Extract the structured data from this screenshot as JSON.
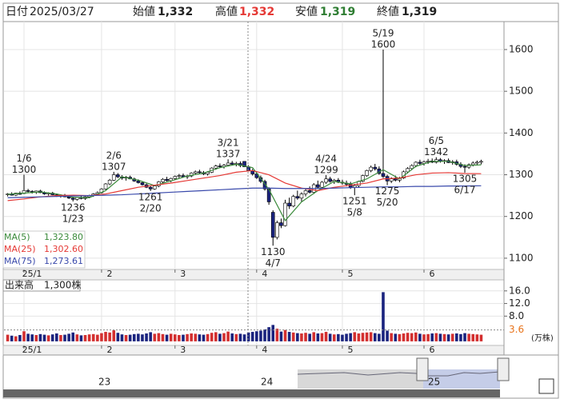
{
  "header": {
    "date_label": "日付",
    "date": "2025/03/27",
    "open_label": "始値",
    "open": "1,332",
    "high_label": "高値",
    "high": "1,332",
    "low_label": "安値",
    "low": "1,319",
    "close_label": "終値",
    "close": "1,319"
  },
  "chart_data": [
    {
      "type": "candlestick",
      "xlim": [
        -0.9,
        121.6
      ],
      "ylim": [
        1073,
        1667
      ],
      "grid": true,
      "yticks": [
        1100,
        1200,
        1300,
        1400,
        1500,
        1600
      ],
      "xticks": [
        {
          "value": 4,
          "label": "25/1"
        },
        {
          "value": 23,
          "label": "2"
        },
        {
          "value": 41,
          "label": "3"
        },
        {
          "value": 61,
          "label": "4"
        },
        {
          "value": 82,
          "label": "5"
        },
        {
          "value": 102,
          "label": "6"
        }
      ],
      "up_color": "#ffffff",
      "down_color": "#1a237e",
      "ohlc": [
        [
          1252,
          1256,
          1248,
          1254
        ],
        [
          1254,
          1258,
          1250,
          1251
        ],
        [
          1251,
          1257,
          1249,
          1256
        ],
        [
          1256,
          1260,
          1252,
          1253
        ],
        [
          1255,
          1300,
          1254,
          1262
        ],
        [
          1262,
          1266,
          1258,
          1260
        ],
        [
          1260,
          1263,
          1255,
          1258
        ],
        [
          1258,
          1262,
          1254,
          1261
        ],
        [
          1261,
          1264,
          1256,
          1257
        ],
        [
          1257,
          1260,
          1252,
          1254
        ],
        [
          1254,
          1258,
          1250,
          1256
        ],
        [
          1256,
          1259,
          1251,
          1252
        ],
        [
          1252,
          1255,
          1247,
          1249
        ],
        [
          1249,
          1253,
          1245,
          1251
        ],
        [
          1251,
          1254,
          1246,
          1247
        ],
        [
          1247,
          1250,
          1242,
          1244
        ],
        [
          1244,
          1247,
          1236,
          1241
        ],
        [
          1241,
          1246,
          1238,
          1245
        ],
        [
          1245,
          1249,
          1241,
          1243
        ],
        [
          1243,
          1248,
          1240,
          1247
        ],
        [
          1247,
          1252,
          1244,
          1250
        ],
        [
          1250,
          1256,
          1247,
          1254
        ],
        [
          1254,
          1260,
          1251,
          1257
        ],
        [
          1257,
          1268,
          1255,
          1266
        ],
        [
          1266,
          1280,
          1264,
          1278
        ],
        [
          1278,
          1290,
          1275,
          1287
        ],
        [
          1287,
          1307,
          1285,
          1300
        ],
        [
          1300,
          1304,
          1292,
          1295
        ],
        [
          1295,
          1299,
          1288,
          1292
        ],
        [
          1292,
          1297,
          1286,
          1294
        ],
        [
          1294,
          1298,
          1289,
          1290
        ],
        [
          1290,
          1293,
          1283,
          1285
        ],
        [
          1285,
          1289,
          1279,
          1281
        ],
        [
          1281,
          1284,
          1274,
          1276
        ],
        [
          1276,
          1279,
          1268,
          1270
        ],
        [
          1270,
          1273,
          1261,
          1266
        ],
        [
          1266,
          1275,
          1264,
          1273
        ],
        [
          1273,
          1285,
          1270,
          1283
        ],
        [
          1283,
          1292,
          1280,
          1289
        ],
        [
          1289,
          1295,
          1284,
          1286
        ],
        [
          1286,
          1293,
          1282,
          1291
        ],
        [
          1291,
          1298,
          1288,
          1296
        ],
        [
          1296,
          1302,
          1292,
          1298
        ],
        [
          1298,
          1303,
          1293,
          1295
        ],
        [
          1295,
          1300,
          1290,
          1297
        ],
        [
          1297,
          1306,
          1294,
          1304
        ],
        [
          1304,
          1310,
          1300,
          1307
        ],
        [
          1307,
          1312,
          1302,
          1305
        ],
        [
          1305,
          1309,
          1299,
          1302
        ],
        [
          1302,
          1308,
          1298,
          1306
        ],
        [
          1306,
          1318,
          1304,
          1316
        ],
        [
          1316,
          1324,
          1312,
          1321
        ],
        [
          1321,
          1327,
          1316,
          1319
        ],
        [
          1319,
          1326,
          1315,
          1323
        ],
        [
          1323,
          1337,
          1320,
          1328
        ],
        [
          1328,
          1333,
          1322,
          1325
        ],
        [
          1325,
          1331,
          1320,
          1327
        ],
        [
          1327,
          1332,
          1318,
          1322
        ],
        [
          1332,
          1332,
          1319,
          1319
        ],
        [
          1319,
          1323,
          1308,
          1310
        ],
        [
          1310,
          1314,
          1298,
          1302
        ],
        [
          1302,
          1306,
          1290,
          1293
        ],
        [
          1293,
          1298,
          1280,
          1284
        ],
        [
          1284,
          1288,
          1262,
          1266
        ],
        [
          1266,
          1270,
          1228,
          1235
        ],
        [
          1210,
          1215,
          1130,
          1150
        ],
        [
          1150,
          1190,
          1145,
          1185
        ],
        [
          1185,
          1195,
          1172,
          1178
        ],
        [
          1178,
          1240,
          1176,
          1232
        ],
        [
          1232,
          1245,
          1218,
          1225
        ],
        [
          1225,
          1252,
          1222,
          1248
        ],
        [
          1248,
          1262,
          1240,
          1244
        ],
        [
          1244,
          1258,
          1236,
          1254
        ],
        [
          1254,
          1266,
          1248,
          1262
        ],
        [
          1262,
          1272,
          1255,
          1258
        ],
        [
          1258,
          1280,
          1254,
          1276
        ],
        [
          1276,
          1286,
          1268,
          1270
        ],
        [
          1270,
          1285,
          1266,
          1282
        ],
        [
          1282,
          1299,
          1278,
          1290
        ],
        [
          1290,
          1295,
          1281,
          1284
        ],
        [
          1284,
          1290,
          1278,
          1287
        ],
        [
          1287,
          1292,
          1280,
          1282
        ],
        [
          1282,
          1288,
          1276,
          1280
        ],
        [
          1280,
          1286,
          1272,
          1277
        ],
        [
          1277,
          1283,
          1266,
          1270
        ],
        [
          1270,
          1278,
          1251,
          1274
        ],
        [
          1274,
          1286,
          1270,
          1284
        ],
        [
          1284,
          1300,
          1282,
          1298
        ],
        [
          1298,
          1312,
          1295,
          1310
        ],
        [
          1310,
          1322,
          1306,
          1318
        ],
        [
          1318,
          1326,
          1310,
          1314
        ],
        [
          1314,
          1320,
          1300,
          1303
        ],
        [
          1303,
          1600,
          1292,
          1296
        ],
        [
          1296,
          1300,
          1275,
          1285
        ],
        [
          1285,
          1294,
          1280,
          1290
        ],
        [
          1290,
          1298,
          1284,
          1287
        ],
        [
          1287,
          1295,
          1282,
          1292
        ],
        [
          1292,
          1310,
          1290,
          1307
        ],
        [
          1307,
          1318,
          1303,
          1315
        ],
        [
          1315,
          1325,
          1311,
          1322
        ],
        [
          1322,
          1332,
          1318,
          1330
        ],
        [
          1330,
          1336,
          1324,
          1327
        ],
        [
          1327,
          1334,
          1322,
          1331
        ],
        [
          1331,
          1338,
          1326,
          1333
        ],
        [
          1333,
          1339,
          1328,
          1330
        ],
        [
          1330,
          1342,
          1327,
          1336
        ],
        [
          1336,
          1340,
          1329,
          1332
        ],
        [
          1332,
          1337,
          1326,
          1334
        ],
        [
          1334,
          1339,
          1328,
          1329
        ],
        [
          1329,
          1335,
          1324,
          1331
        ],
        [
          1331,
          1336,
          1322,
          1325
        ],
        [
          1325,
          1330,
          1316,
          1320
        ],
        [
          1320,
          1325,
          1305,
          1318
        ],
        [
          1318,
          1327,
          1314,
          1324
        ],
        [
          1324,
          1332,
          1320,
          1328
        ],
        [
          1328,
          1334,
          1322,
          1330
        ],
        [
          1330,
          1336,
          1325,
          1332
        ]
      ],
      "ma": [
        {
          "name": "MA(5)",
          "color": "#3a8a3a",
          "last_label": "1,323.80",
          "x": [
            0,
            4,
            8,
            12,
            16,
            20,
            24,
            28,
            32,
            36,
            40,
            44,
            48,
            52,
            56,
            60,
            64,
            68,
            72,
            76,
            80,
            84,
            88,
            92,
            96,
            100,
            104,
            108,
            112,
            116
          ],
          "values": [
            1253,
            1256,
            1259,
            1254,
            1246,
            1245,
            1262,
            1295,
            1287,
            1274,
            1285,
            1297,
            1304,
            1317,
            1325,
            1317,
            1265,
            1190,
            1235,
            1262,
            1284,
            1278,
            1290,
            1312,
            1290,
            1320,
            1332,
            1332,
            1322,
            1323.8
          ]
        },
        {
          "name": "MA(25)",
          "color": "#e53935",
          "last_label": "1,302.60",
          "x": [
            0,
            4,
            8,
            12,
            16,
            20,
            24,
            28,
            32,
            36,
            40,
            44,
            48,
            52,
            56,
            60,
            64,
            68,
            72,
            76,
            80,
            84,
            88,
            92,
            96,
            100,
            104,
            108,
            112,
            116
          ],
          "values": [
            1238,
            1242,
            1247,
            1250,
            1251,
            1250,
            1254,
            1262,
            1270,
            1275,
            1280,
            1286,
            1292,
            1298,
            1306,
            1310,
            1300,
            1280,
            1268,
            1262,
            1270,
            1275,
            1280,
            1290,
            1292,
            1300,
            1304,
            1305,
            1303,
            1302.6
          ]
        },
        {
          "name": "MA(75)",
          "color": "#3949ab",
          "last_label": "1,273.61",
          "x": [
            0,
            4,
            8,
            12,
            16,
            20,
            24,
            28,
            32,
            36,
            40,
            44,
            48,
            52,
            56,
            60,
            64,
            68,
            72,
            76,
            80,
            84,
            88,
            92,
            96,
            100,
            104,
            108,
            112,
            116
          ],
          "values": [
            1245,
            1246,
            1247,
            1248,
            1249,
            1250,
            1251,
            1252,
            1254,
            1256,
            1258,
            1260,
            1262,
            1264,
            1266,
            1268,
            1268,
            1267,
            1267,
            1267,
            1268,
            1269,
            1270,
            1271,
            1271,
            1272,
            1272,
            1273,
            1273,
            1273.61
          ]
        }
      ],
      "annotations": [
        {
          "x": 4,
          "date": "1/6",
          "value": 1300,
          "side": "high"
        },
        {
          "x": 16,
          "date": "1/23",
          "value": 1236,
          "side": "low"
        },
        {
          "x": 26,
          "date": "2/6",
          "value": 1307,
          "side": "high"
        },
        {
          "x": 35,
          "date": "2/20",
          "value": 1261,
          "side": "low"
        },
        {
          "x": 54,
          "date": "3/21",
          "value": 1337,
          "side": "high"
        },
        {
          "x": 65,
          "date": "4/7",
          "value": 1130,
          "side": "low"
        },
        {
          "x": 78,
          "date": "4/24",
          "value": 1299,
          "side": "high"
        },
        {
          "x": 85,
          "date": "5/8",
          "value": 1251,
          "side": "low"
        },
        {
          "x": 92,
          "date": "5/19",
          "value": 1600,
          "side": "high"
        },
        {
          "x": 93,
          "date": "5/20",
          "value": 1275,
          "side": "low"
        },
        {
          "x": 105,
          "date": "6/5",
          "value": 1342,
          "side": "high"
        },
        {
          "x": 112,
          "date": "6/17",
          "value": 1305,
          "side": "low"
        }
      ]
    },
    {
      "type": "bar",
      "title": "出来高",
      "subtitle": "1,300株",
      "unit": "(万株)",
      "xlim": [
        -0.9,
        121.6
      ],
      "ylim": [
        -1.3,
        19.5
      ],
      "grid": true,
      "yticks": [
        {
          "value": 16,
          "label": "16.0"
        },
        {
          "value": 12,
          "label": "12.0"
        },
        {
          "value": 8,
          "label": "8.0"
        }
      ],
      "xticks": [
        {
          "value": 4,
          "label": "25/1"
        },
        {
          "value": 23,
          "label": "2"
        },
        {
          "value": 41,
          "label": "3"
        },
        {
          "value": 61,
          "label": "4"
        },
        {
          "value": 82,
          "label": "5"
        },
        {
          "value": 102,
          "label": "6"
        }
      ],
      "reference": {
        "value": 3.6,
        "color": "#e8731a"
      },
      "up_color": "#d32f2f",
      "down_color": "#1a237e",
      "values": [
        2.1,
        1.8,
        1.6,
        2.0,
        3.2,
        2.4,
        2.2,
        2.0,
        2.3,
        2.1,
        1.9,
        2.2,
        2.5,
        2.0,
        2.1,
        2.4,
        2.8,
        2.2,
        1.9,
        2.0,
        2.2,
        2.3,
        2.1,
        2.6,
        3.0,
        2.8,
        3.5,
        2.7,
        2.2,
        2.0,
        2.1,
        2.3,
        2.4,
        2.2,
        2.5,
        2.9,
        2.4,
        2.6,
        2.3,
        2.1,
        2.4,
        2.2,
        2.0,
        2.1,
        2.3,
        2.5,
        2.4,
        2.2,
        2.1,
        2.3,
        2.7,
        2.9,
        2.4,
        2.6,
        3.1,
        2.5,
        2.3,
        2.4,
        2.2,
        2.8,
        3.0,
        3.2,
        3.4,
        3.8,
        4.5,
        5.2,
        4.0,
        3.1,
        3.6,
        3.0,
        2.8,
        2.6,
        2.5,
        2.7,
        2.4,
        2.9,
        2.5,
        2.6,
        3.0,
        2.4,
        2.2,
        2.3,
        2.1,
        2.4,
        2.6,
        2.9,
        2.5,
        2.7,
        2.8,
        2.9,
        2.6,
        2.4,
        15.6,
        3.4,
        2.6,
        2.4,
        2.3,
        2.5,
        2.7,
        2.6,
        2.8,
        2.4,
        2.2,
        2.3,
        2.5,
        2.6,
        2.4,
        2.3,
        2.2,
        2.4,
        2.5,
        2.3,
        2.6,
        2.4,
        2.3,
        2.2,
        2.1
      ]
    }
  ],
  "navigator": {
    "labels": [
      "23",
      "24",
      "25"
    ]
  }
}
